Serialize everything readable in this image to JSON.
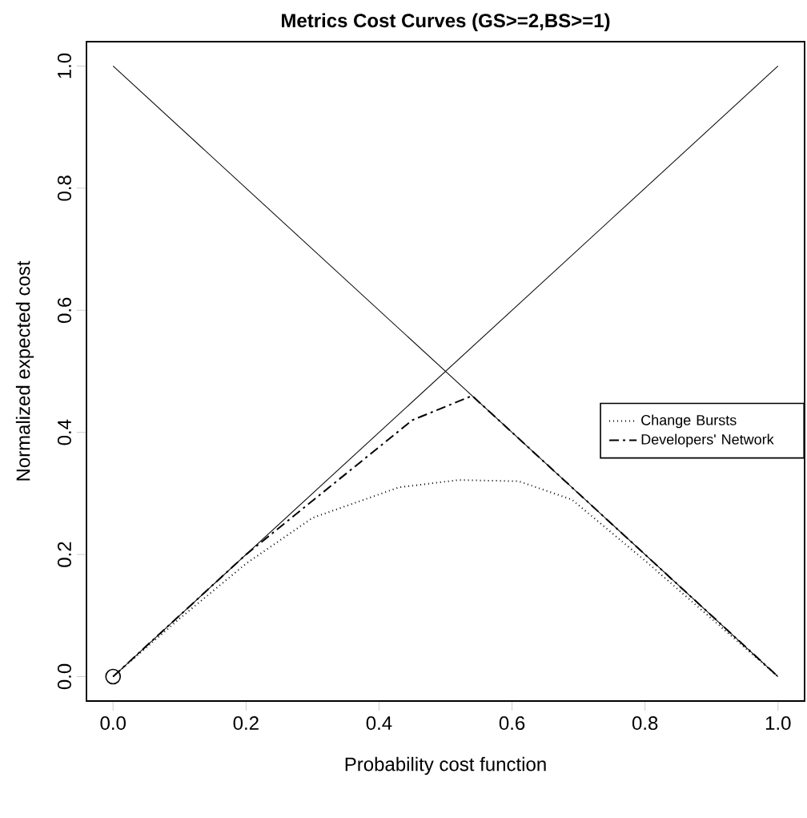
{
  "chart_data": {
    "type": "line",
    "title": "Metrics Cost Curves (GS>=2,BS>=1)",
    "xlabel": "Probability cost function",
    "ylabel": "Normalized expected cost",
    "xlim": [
      -0.04,
      1.04
    ],
    "ylim": [
      -0.04,
      1.04
    ],
    "xticks": [
      {
        "value": 0,
        "label": "0.0"
      },
      {
        "value": 0.2,
        "label": "0.2"
      },
      {
        "value": 0.4,
        "label": "0.4"
      },
      {
        "value": 0.6,
        "label": "0.6"
      },
      {
        "value": 0.8,
        "label": "0.8"
      },
      {
        "value": 1,
        "label": "1.0"
      }
    ],
    "yticks": [
      {
        "value": 0,
        "label": "0.0"
      },
      {
        "value": 0.2,
        "label": "0.2"
      },
      {
        "value": 0.4,
        "label": "0.4"
      },
      {
        "value": 0.6,
        "label": "0.6"
      },
      {
        "value": 0.8,
        "label": "0.8"
      },
      {
        "value": 1,
        "label": "1.0"
      }
    ],
    "grid": false,
    "legend": "right",
    "series": [
      {
        "color": "#000000",
        "line_style": "solid",
        "x": [
          0,
          1
        ],
        "values": [
          1,
          0
        ]
      },
      {
        "color": "#000000",
        "line_style": "solid",
        "x": [
          0,
          1
        ],
        "values": [
          0,
          1
        ]
      },
      {
        "name": "Change Bursts",
        "color": "#000000",
        "line_style": "dotted",
        "x": [
          0,
          0.1,
          0.2,
          0.3,
          0.43,
          0.52,
          0.61,
          0.69,
          0.8,
          0.9,
          1
        ],
        "values": [
          0,
          0.095,
          0.185,
          0.26,
          0.31,
          0.322,
          0.32,
          0.29,
          0.19,
          0.095,
          0
        ]
      },
      {
        "name": "Developers' Network",
        "color": "#000000",
        "line_style": "dashdot",
        "x": [
          0,
          0.2,
          0.45,
          0.54,
          1
        ],
        "values": [
          0,
          0.2,
          0.42,
          0.46,
          0
        ]
      },
      {
        "type": "scatter",
        "color": "#000000",
        "marker": "circle",
        "x": [
          0
        ],
        "values": [
          0
        ]
      }
    ]
  }
}
